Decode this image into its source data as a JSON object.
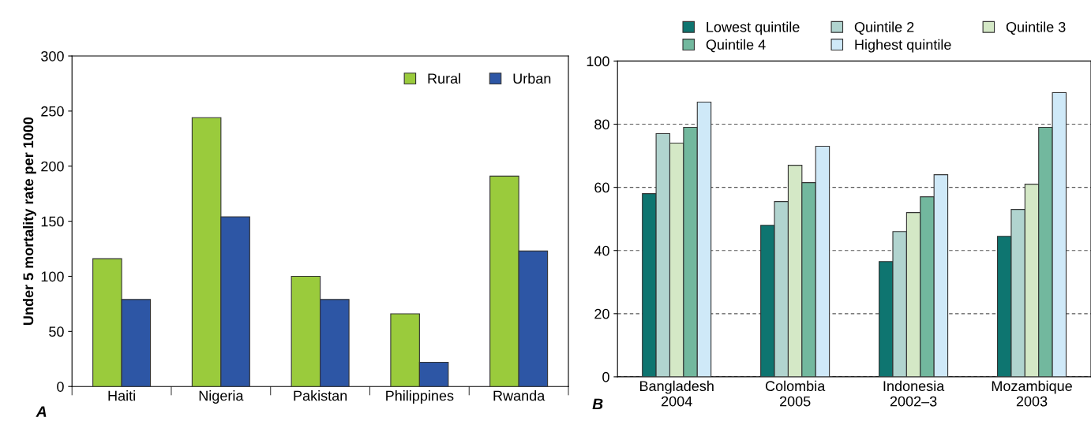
{
  "chart_data": [
    {
      "type": "bar",
      "ylabel": "Under 5 mortality rate per 1000",
      "categories": [
        "Haiti",
        "Nigeria",
        "Pakistan",
        "Philippines",
        "Rwanda"
      ],
      "series": [
        {
          "name": "Rural",
          "color": "#9acb3c",
          "values": [
            116,
            244,
            100,
            66,
            191
          ]
        },
        {
          "name": "Urban",
          "color": "#2d56a5",
          "values": [
            79,
            154,
            79,
            22,
            123
          ]
        }
      ],
      "ylim": [
        0,
        300
      ],
      "yticks": [
        0,
        50,
        100,
        150,
        200,
        250,
        300
      ],
      "grid": false,
      "legend": "top right",
      "annotations": [
        "A"
      ]
    },
    {
      "type": "bar",
      "categories": [
        "Bangladesh\n2004",
        "Colombia\n2005",
        "Indonesia\n2002–3",
        "Mozambique\n2003"
      ],
      "series": [
        {
          "name": "Lowest quintile",
          "color": "#0e7570",
          "values": [
            58,
            48,
            36.5,
            44.5
          ]
        },
        {
          "name": "Quintile 2",
          "color": "#b1d4cf",
          "values": [
            77,
            55.5,
            46,
            53
          ]
        },
        {
          "name": "Quintile 3",
          "color": "#d4e8c6",
          "values": [
            74,
            67,
            52,
            61
          ]
        },
        {
          "name": "Quintile 4",
          "color": "#72b89e",
          "values": [
            79,
            61.5,
            57,
            79
          ]
        },
        {
          "name": "Highest quintile",
          "color": "#cfe9f8",
          "values": [
            87,
            73,
            64,
            90
          ]
        }
      ],
      "ylim": [
        0,
        100
      ],
      "yticks": [
        0,
        20,
        40,
        60,
        80,
        100
      ],
      "grid": "y",
      "legend": "top",
      "annotations": [
        "B"
      ]
    }
  ]
}
